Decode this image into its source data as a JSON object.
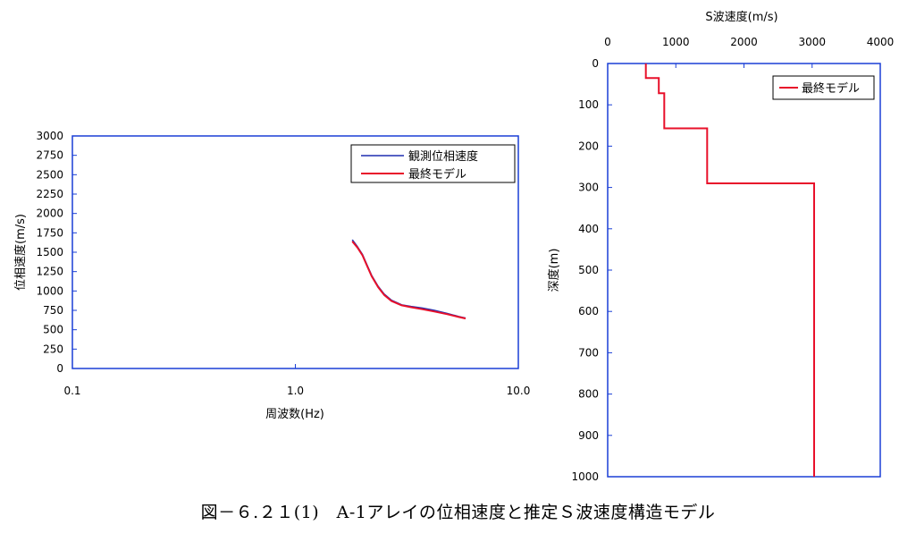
{
  "caption": "図－６.２１(1)　A-1アレイの位相速度と推定Ｓ波速度構造モデル",
  "colors": {
    "frame": "#1a3fd6",
    "observed": "#1f2fb0",
    "model": "#e8102a"
  },
  "chart_data": [
    {
      "type": "line",
      "xscale": "log",
      "xlabel": "周波数(Hz)",
      "ylabel": "位相速度(m/s)",
      "xlim": [
        0.1,
        10.0
      ],
      "ylim": [
        0,
        3000
      ],
      "xticks": [
        "0.1",
        "1.0",
        "10.0"
      ],
      "yticks": [
        "0",
        "250",
        "500",
        "750",
        "1000",
        "1250",
        "1500",
        "1750",
        "2000",
        "2250",
        "2500",
        "2750",
        "3000"
      ],
      "legend_position": "top-right",
      "series": [
        {
          "name": "観測位相速度",
          "color": "#1f2fb0",
          "x": [
            1.8,
            1.9,
            2.0,
            2.1,
            2.2,
            2.35,
            2.5,
            2.7,
            3.0,
            3.3,
            3.7,
            4.2,
            4.8,
            5.4,
            5.8
          ],
          "y": [
            1660,
            1570,
            1470,
            1330,
            1200,
            1060,
            960,
            880,
            820,
            800,
            780,
            750,
            710,
            670,
            650
          ]
        },
        {
          "name": "最終モデル",
          "color": "#e8102a",
          "x": [
            1.8,
            1.9,
            2.0,
            2.1,
            2.2,
            2.35,
            2.5,
            2.7,
            3.0,
            3.3,
            3.7,
            4.2,
            4.8,
            5.4,
            5.8
          ],
          "y": [
            1640,
            1560,
            1460,
            1320,
            1190,
            1050,
            950,
            870,
            815,
            790,
            765,
            735,
            700,
            665,
            645
          ]
        }
      ]
    },
    {
      "type": "line",
      "xlabel": "S波速度(m/s)",
      "ylabel": "深度(m)",
      "xlim": [
        0,
        4000
      ],
      "ylim": [
        0,
        1000
      ],
      "y_inverted": true,
      "x_axis_position": "top",
      "xticks": [
        "0",
        "1000",
        "2000",
        "3000",
        "4000"
      ],
      "yticks": [
        "0",
        "100",
        "200",
        "300",
        "400",
        "500",
        "600",
        "700",
        "800",
        "900",
        "1000"
      ],
      "legend_position": "top-right",
      "series": [
        {
          "name": "最終モデル",
          "color": "#e8102a",
          "x": [
            560,
            560,
            750,
            750,
            830,
            830,
            1460,
            1460,
            3030,
            3030
          ],
          "y": [
            0,
            35,
            35,
            72,
            72,
            157,
            157,
            290,
            290,
            1000
          ]
        }
      ]
    }
  ]
}
